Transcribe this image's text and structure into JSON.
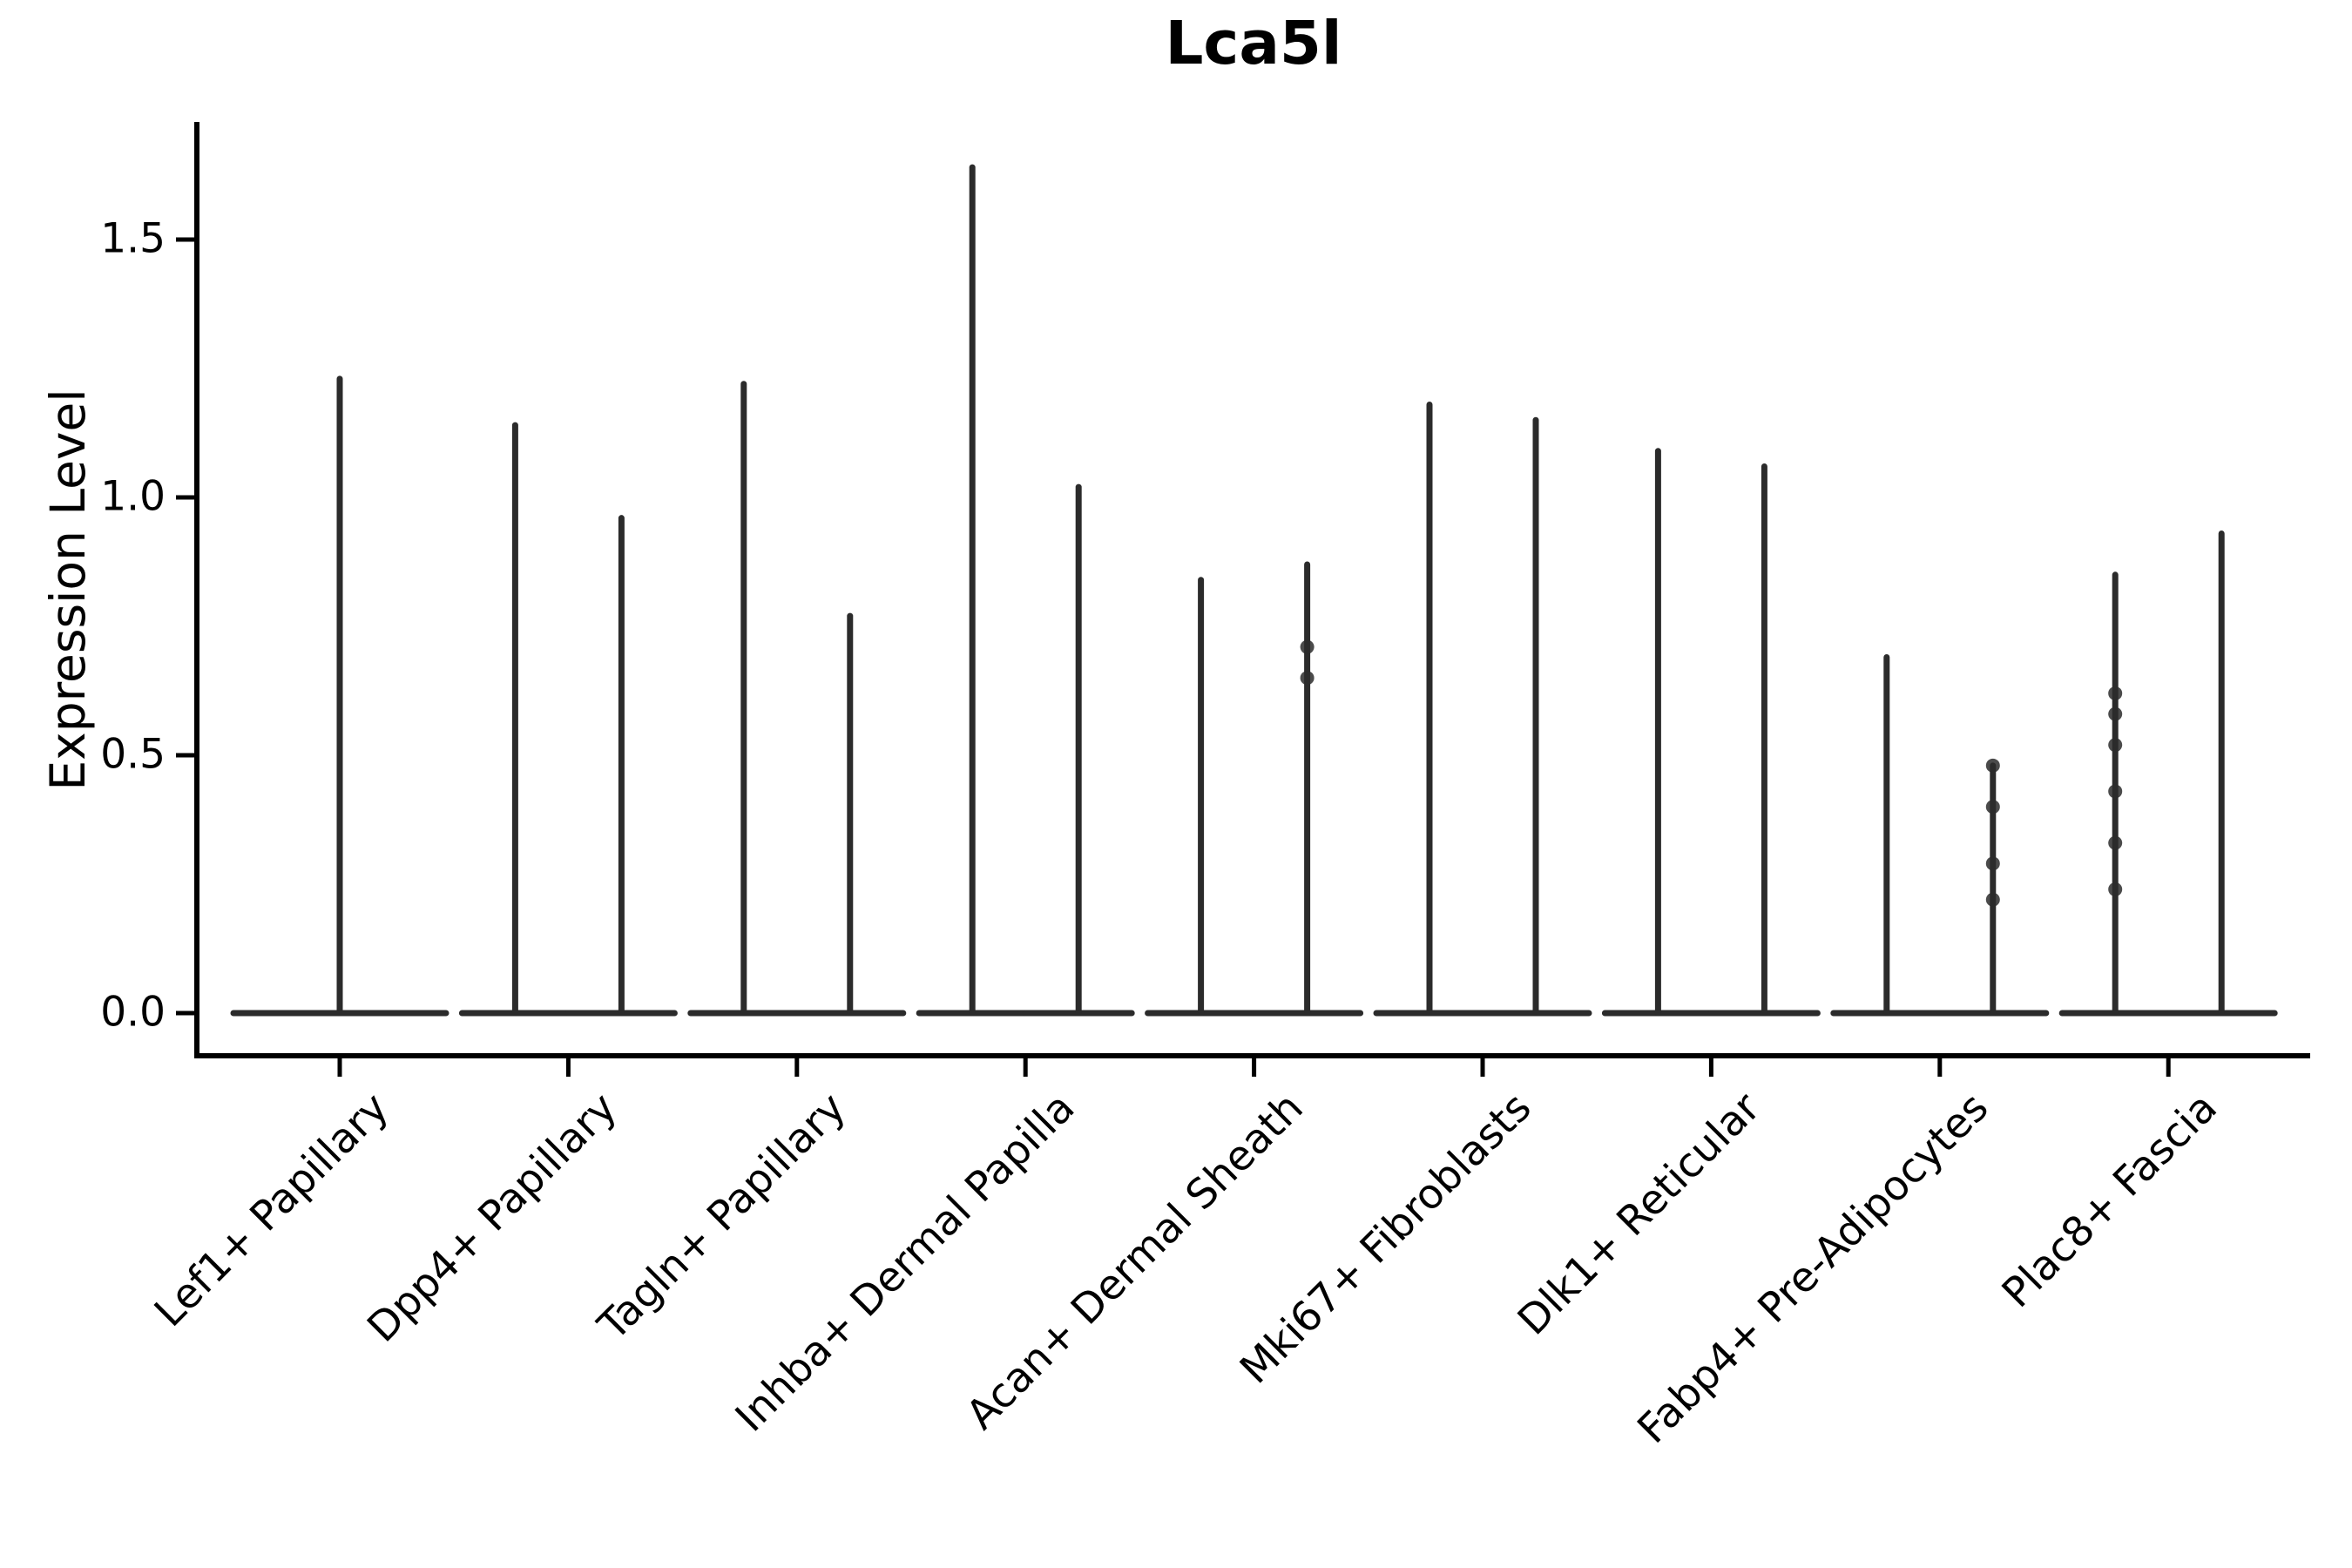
{
  "chart_data": {
    "type": "violin",
    "title": "Lca5l",
    "ylabel": "Expression Level",
    "xlabel": "",
    "yticks": [
      0.0,
      0.5,
      1.0,
      1.5
    ],
    "ytick_labels": [
      "0.0",
      "0.5",
      "1.0",
      "1.5"
    ],
    "ylim": [
      0,
      1.73
    ],
    "grid": false,
    "legend": "none",
    "line_color": "#2b2b2b",
    "axis_color": "#000000",
    "background": "#ffffff",
    "categories": [
      "Lef1+ Papillary",
      "Dpp4+ Papillary",
      "Tagln+ Papillary",
      "Inhba+ Dermal Papilla",
      "Acan+ Dermal Sheath",
      "Mki67+ Fibroblasts",
      "Dlk1+ Reticular",
      "Fabp4+ Pre-Adipocytes",
      "Plac8+ Fascia"
    ],
    "groups": [
      {
        "category": "Lef1+ Papillary",
        "violins": [
          {
            "offset": 0,
            "half_width": 122,
            "max_expression": 1.23,
            "points": []
          }
        ]
      },
      {
        "category": "Dpp4+ Papillary",
        "violins": [
          {
            "offset": -61,
            "half_width": 61,
            "max_expression": 1.14,
            "points": []
          },
          {
            "offset": 61,
            "half_width": 61,
            "max_expression": 0.96,
            "points": []
          }
        ]
      },
      {
        "category": "Tagln+ Papillary",
        "violins": [
          {
            "offset": -61,
            "half_width": 61,
            "max_expression": 1.22,
            "points": []
          },
          {
            "offset": 61,
            "half_width": 61,
            "max_expression": 0.77,
            "points": []
          }
        ]
      },
      {
        "category": "Inhba+ Dermal Papilla",
        "violins": [
          {
            "offset": -61,
            "half_width": 61,
            "max_expression": 1.64,
            "points": []
          },
          {
            "offset": 61,
            "half_width": 61,
            "max_expression": 1.02,
            "points": []
          }
        ]
      },
      {
        "category": "Acan+ Dermal Sheath",
        "violins": [
          {
            "offset": -61,
            "half_width": 61,
            "max_expression": 0.84,
            "points": []
          },
          {
            "offset": 61,
            "half_width": 61,
            "max_expression": 0.87,
            "points": [
              0.71,
              0.65
            ]
          }
        ]
      },
      {
        "category": "Mki67+ Fibroblasts",
        "violins": [
          {
            "offset": -61,
            "half_width": 61,
            "max_expression": 1.18,
            "points": []
          },
          {
            "offset": 61,
            "half_width": 61,
            "max_expression": 1.15,
            "points": []
          }
        ]
      },
      {
        "category": "Dlk1+ Reticular",
        "violins": [
          {
            "offset": -61,
            "half_width": 61,
            "max_expression": 1.09,
            "points": []
          },
          {
            "offset": 61,
            "half_width": 61,
            "max_expression": 1.06,
            "points": []
          }
        ]
      },
      {
        "category": "Fabp4+ Pre-Adipocytes",
        "violins": [
          {
            "offset": -61,
            "half_width": 61,
            "max_expression": 0.69,
            "points": []
          },
          {
            "offset": 61,
            "half_width": 61,
            "max_expression": 0.48,
            "points": [
              0.48,
              0.4,
              0.29,
              0.22
            ]
          }
        ]
      },
      {
        "category": "Plac8+ Fascia",
        "violins": [
          {
            "offset": -61,
            "half_width": 61,
            "max_expression": 0.85,
            "points": [
              0.62,
              0.58,
              0.52,
              0.43,
              0.33,
              0.24
            ]
          },
          {
            "offset": 61,
            "half_width": 61,
            "max_expression": 0.93,
            "points": []
          }
        ]
      }
    ]
  }
}
